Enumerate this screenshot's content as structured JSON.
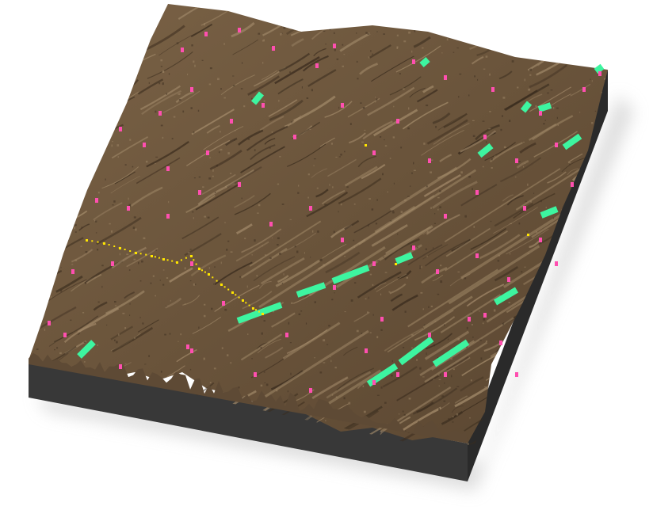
{
  "scene": {
    "type": "3d-terrain-block",
    "background_color": "#ffffff",
    "terrain_color": "#6e5840",
    "terrain_highlight_color": "#a08868",
    "terrain_shadow_color": "#3a2c1e",
    "base_color": "#3a3a3a",
    "base_side_color": "#2c2c2c",
    "shadow_color": "#d8d8d8",
    "ridge_orientation": "southwest-northeast"
  },
  "overlays": {
    "points": {
      "color": "#ff4fb0",
      "shape": "small-marker",
      "description_shown": false
    },
    "path": {
      "color": "#ffe600",
      "style": "dotted"
    },
    "segments": {
      "color": "#3df5a0",
      "style": "bar"
    }
  }
}
